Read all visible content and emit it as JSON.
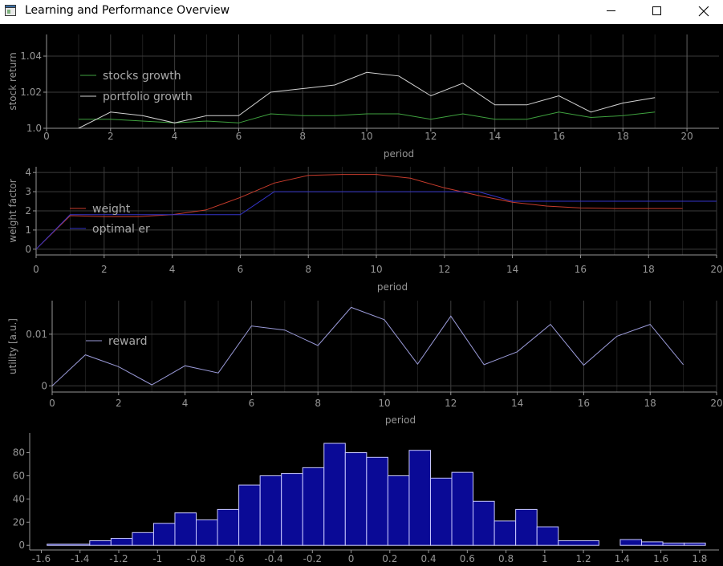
{
  "window": {
    "title": "Learning and Performance Overview",
    "icons": [
      "app-icon",
      "minimize-icon",
      "maximize-icon",
      "close-icon"
    ]
  },
  "colors": {
    "background": "#000000",
    "axis": "#969696",
    "grid": "#3c3c3c",
    "stocks": "#3fa23f",
    "portfolio": "#d2d2d2",
    "weight": "#c83c2c",
    "optimal": "#3434c8",
    "reward": "#9a9ad8",
    "hist_fill": "#0a0a96",
    "hist_stroke": "#c8c8ff"
  },
  "chart_data": [
    {
      "type": "line",
      "xlabel": "period",
      "ylabel": "stock return",
      "xlim": [
        0,
        21
      ],
      "ylim": [
        1.0,
        1.052
      ],
      "x_ticks": [
        "0",
        "2",
        "4",
        "6",
        "8",
        "10",
        "12",
        "14",
        "16",
        "18",
        "20"
      ],
      "y_ticks": [
        "1.0",
        "1.02",
        "1.04"
      ],
      "legend": "top-left",
      "series": [
        {
          "name": "stocks growth",
          "x": [
            1,
            2,
            3,
            4,
            5,
            6,
            7,
            8,
            9,
            10,
            11,
            12,
            13,
            14,
            15,
            16,
            17,
            18,
            19
          ],
          "values": [
            1.005,
            1.005,
            1.004,
            1.003,
            1.004,
            1.003,
            1.008,
            1.007,
            1.007,
            1.008,
            1.008,
            1.005,
            1.008,
            1.005,
            1.005,
            1.009,
            1.006,
            1.007,
            1.009
          ]
        },
        {
          "name": "portfolio growth",
          "x": [
            1,
            2,
            3,
            4,
            5,
            6,
            7,
            8,
            9,
            10,
            11,
            12,
            13,
            14,
            15,
            16,
            17,
            18,
            19
          ],
          "values": [
            1.0,
            1.009,
            1.007,
            1.003,
            1.007,
            1.007,
            1.02,
            1.022,
            1.024,
            1.031,
            1.029,
            1.018,
            1.025,
            1.013,
            1.013,
            1.018,
            1.009,
            1.014,
            1.017
          ]
        }
      ]
    },
    {
      "type": "line",
      "xlabel": "period",
      "ylabel": "weight factor",
      "xlim": [
        0,
        20
      ],
      "ylim": [
        -0.3,
        4.3
      ],
      "x_ticks": [
        "0",
        "2",
        "4",
        "6",
        "8",
        "10",
        "12",
        "14",
        "16",
        "18",
        "20"
      ],
      "y_ticks": [
        "0",
        "1",
        "2",
        "3",
        "4"
      ],
      "legend": "left",
      "series": [
        {
          "name": "weight",
          "x": [
            0,
            1,
            2,
            3,
            4,
            5,
            6,
            7,
            8,
            9,
            10,
            11,
            12,
            13,
            14,
            15,
            16,
            17,
            18,
            19
          ],
          "values": [
            0.0,
            1.75,
            1.7,
            1.7,
            1.8,
            2.05,
            2.7,
            3.45,
            3.85,
            3.9,
            3.9,
            3.7,
            3.2,
            2.8,
            2.45,
            2.25,
            2.15,
            2.12,
            2.12,
            2.12
          ]
        },
        {
          "name": "optimal er",
          "x": [
            0,
            1,
            2,
            3,
            4,
            5,
            6,
            7,
            8,
            9,
            10,
            11,
            12,
            13,
            14,
            15,
            16,
            17,
            18,
            19,
            20
          ],
          "values": [
            0.0,
            1.8,
            1.8,
            1.8,
            1.8,
            1.8,
            1.8,
            3.0,
            3.0,
            3.0,
            3.0,
            3.0,
            3.0,
            3.0,
            2.5,
            2.5,
            2.5,
            2.5,
            2.5,
            2.5,
            2.5
          ]
        }
      ]
    },
    {
      "type": "line",
      "xlabel": "period",
      "ylabel": "utility [a.u.]",
      "xlim": [
        0,
        20
      ],
      "ylim": [
        -0.0012,
        0.0165
      ],
      "x_ticks": [
        "0",
        "2",
        "4",
        "6",
        "8",
        "10",
        "12",
        "14",
        "16",
        "18",
        "20"
      ],
      "y_ticks": [
        "0",
        "0.01"
      ],
      "legend": "left",
      "series": [
        {
          "name": "reward",
          "x": [
            0,
            1,
            2,
            3,
            4,
            5,
            6,
            7,
            8,
            9,
            10,
            11,
            12,
            13,
            14,
            15,
            16,
            17,
            18,
            19
          ],
          "values": [
            0.0,
            0.006,
            0.0037,
            0.0002,
            0.0039,
            0.0025,
            0.0116,
            0.0108,
            0.0078,
            0.0152,
            0.0128,
            0.0042,
            0.0135,
            0.0041,
            0.0066,
            0.0119,
            0.004,
            0.0096,
            0.0119,
            0.0041
          ]
        }
      ]
    },
    {
      "type": "bar",
      "xlim": [
        -1.66,
        1.9
      ],
      "ylim": [
        -4,
        97
      ],
      "x_ticks": [
        "-1.6",
        "-1.4",
        "-1.2",
        "-1",
        "-0.8",
        "-0.6",
        "-0.4",
        "-0.2",
        "0",
        "0.2",
        "0.4",
        "0.6",
        "0.8",
        "1",
        "1.2",
        "1.4",
        "1.6",
        "1.8"
      ],
      "y_ticks": [
        "0",
        "20",
        "40",
        "60",
        "80"
      ],
      "bin_edges": [
        -1.57,
        -1.35,
        -1.24,
        -1.13,
        -1.02,
        -0.91,
        -0.8,
        -0.69,
        -0.58,
        -0.47,
        -0.36,
        -0.25,
        -0.14,
        -0.03,
        0.08,
        0.19,
        0.3,
        0.41,
        0.52,
        0.63,
        0.74,
        0.85,
        0.96,
        1.07,
        1.28,
        1.39,
        1.5,
        1.61,
        1.72,
        1.83
      ],
      "values": [
        1,
        4,
        6,
        11,
        19,
        28,
        22,
        31,
        52,
        60,
        62,
        67,
        88,
        80,
        76,
        60,
        82,
        58,
        63,
        38,
        21,
        31,
        16,
        4,
        0,
        5,
        3,
        2,
        2
      ]
    }
  ]
}
